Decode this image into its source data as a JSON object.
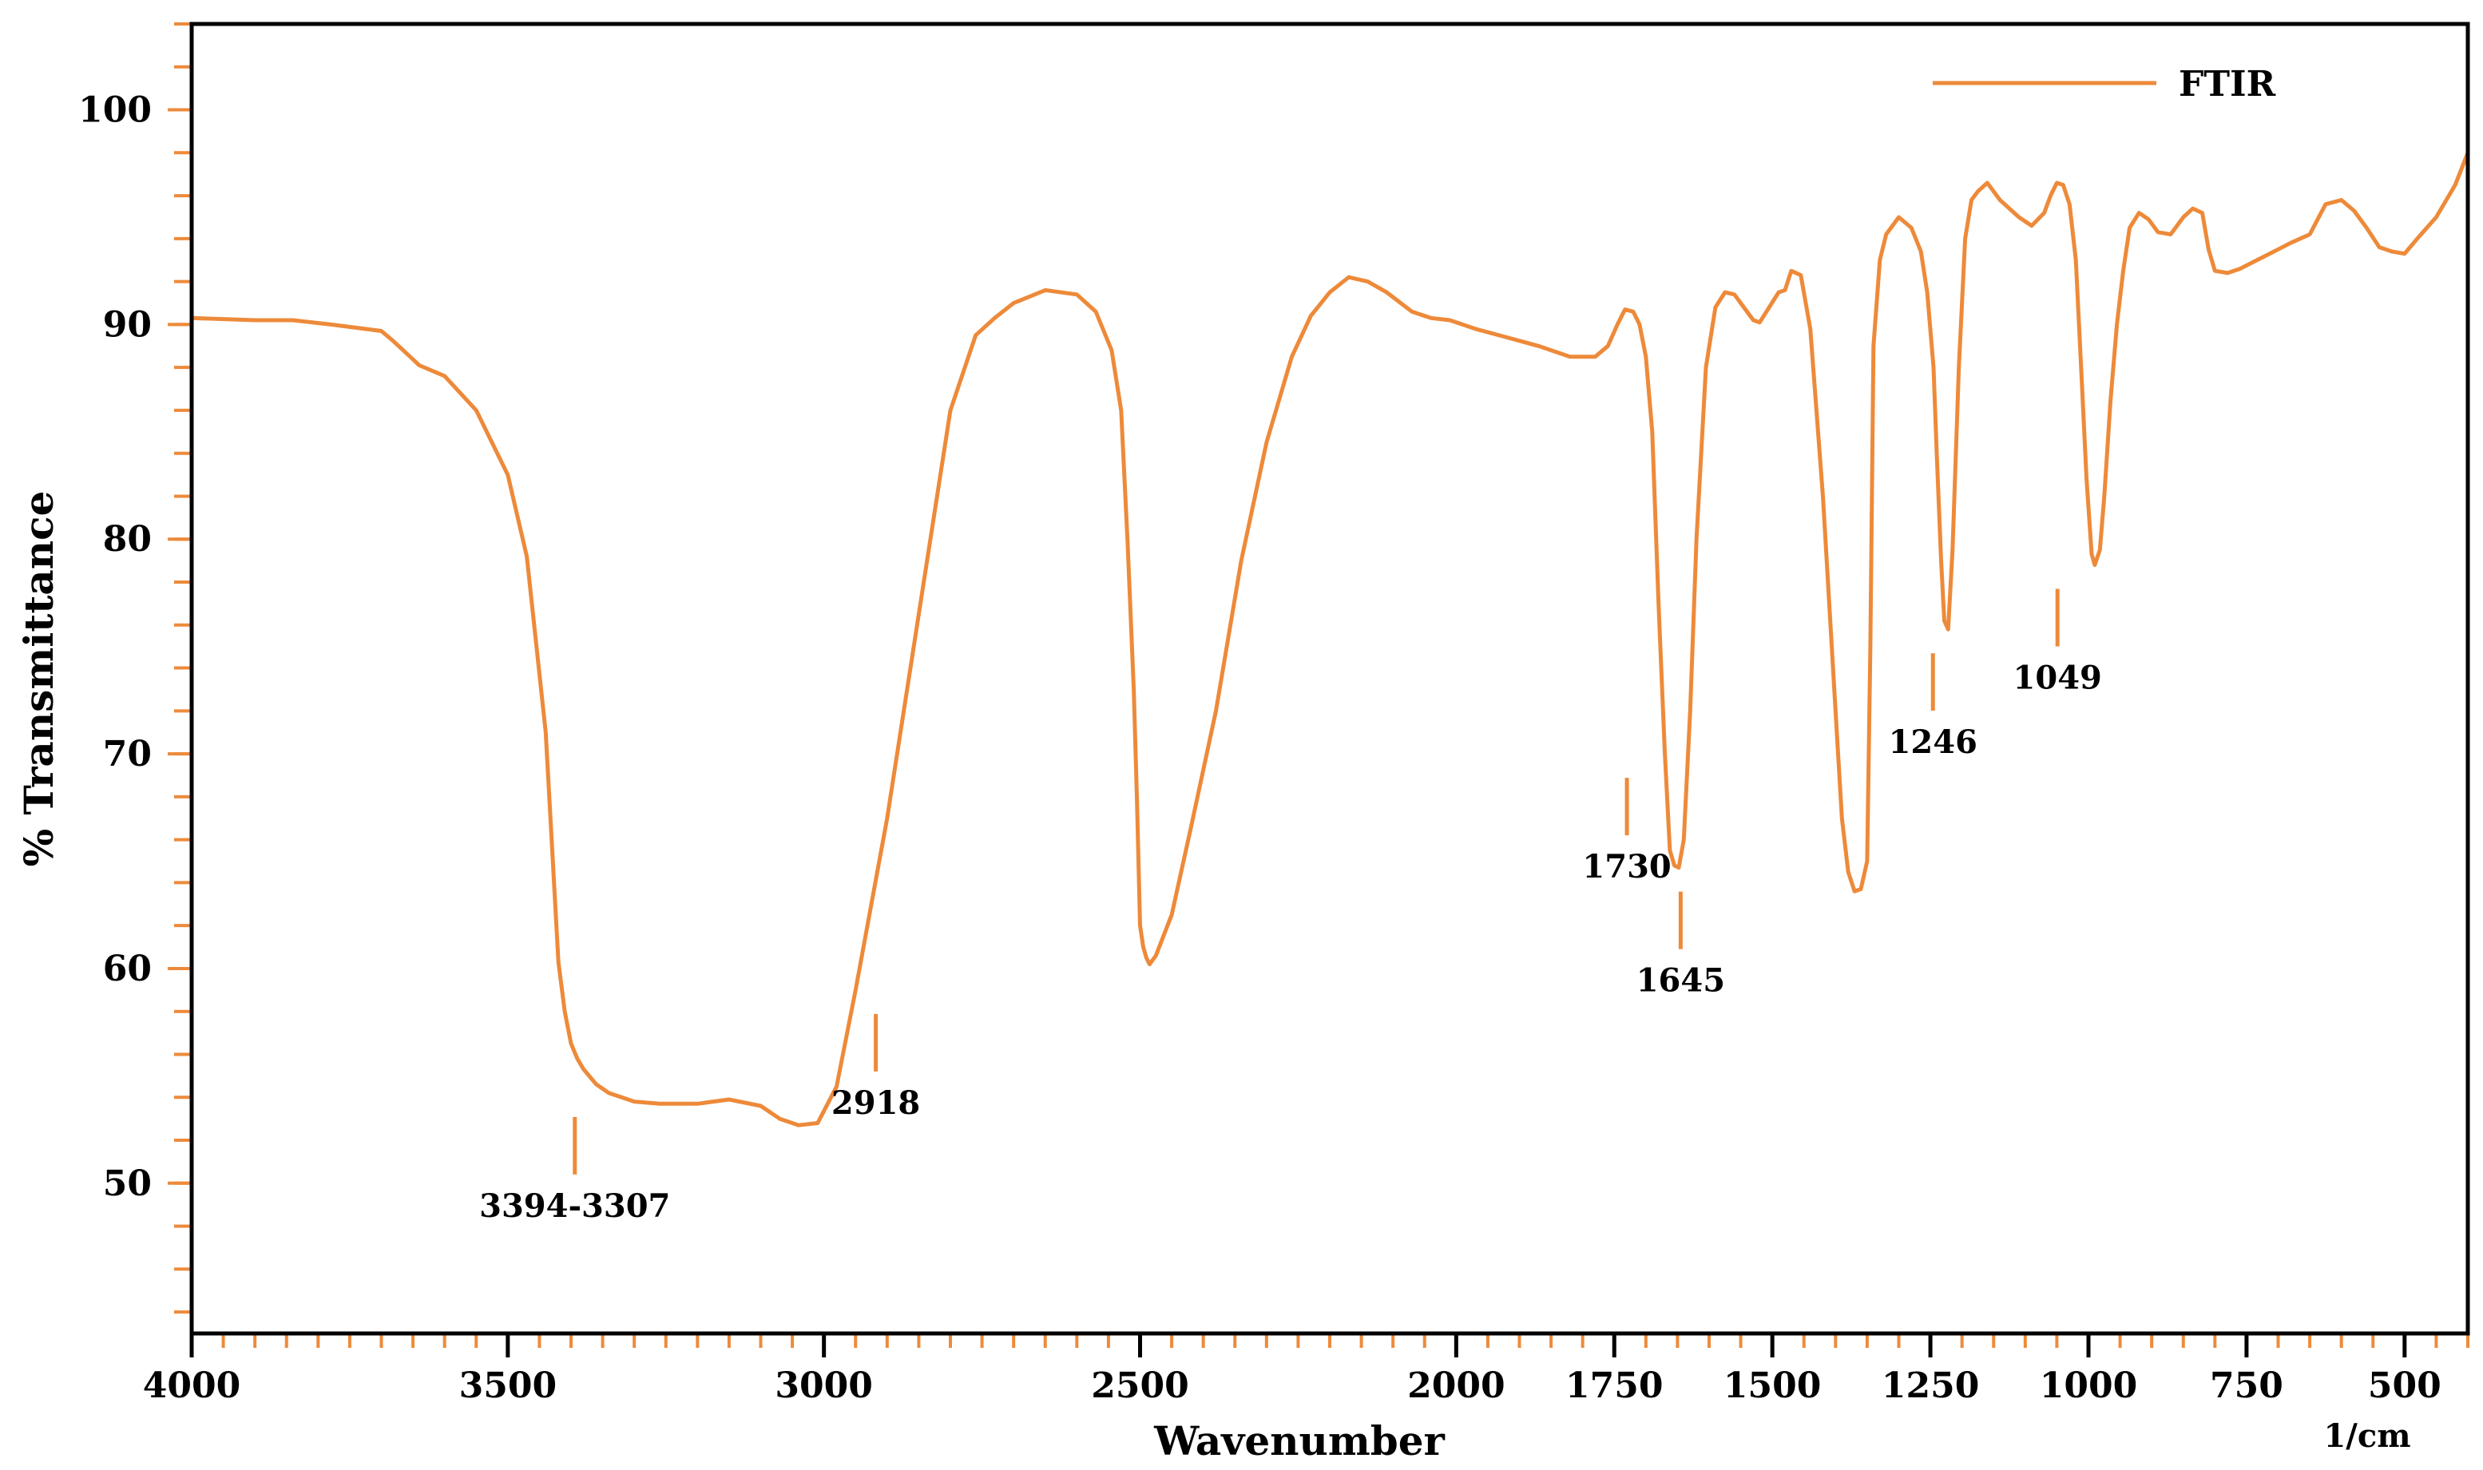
{
  "chart_data": {
    "type": "line",
    "xlabel": "Wavenumber",
    "xunit": "1/cm",
    "ylabel": "% Transmittance",
    "xlim": [
      4000,
      400
    ],
    "x_reversed": true,
    "ylim": [
      43,
      104
    ],
    "x_ticks": [
      4000,
      3500,
      3000,
      2500,
      2000,
      1750,
      1500,
      1250,
      1000,
      750,
      500
    ],
    "x_tick_labels": [
      "4000",
      "3500",
      "3000",
      "2500",
      "2000",
      "1750",
      "1500",
      "1250",
      "1000",
      "750",
      "500"
    ],
    "y_ticks": [
      50,
      60,
      70,
      80,
      90,
      100
    ],
    "y_tick_labels": [
      "50",
      "60",
      "70",
      "80",
      "90",
      "100"
    ],
    "legend": {
      "position": "top-right"
    },
    "grid": false,
    "color": "#ED8A3A",
    "series": [
      {
        "name": "FTIR",
        "x": [
          4000,
          3900,
          3840,
          3780,
          3700,
          3680,
          3640,
          3600,
          3550,
          3500,
          3470,
          3440,
          3420,
          3410,
          3400,
          3390,
          3380,
          3360,
          3340,
          3300,
          3260,
          3200,
          3150,
          3100,
          3070,
          3040,
          3010,
          2980,
          2950,
          2900,
          2850,
          2800,
          2760,
          2730,
          2700,
          2650,
          2600,
          2570,
          2545,
          2530,
          2520,
          2510,
          2505,
          2500,
          2495,
          2490,
          2485,
          2475,
          2450,
          2420,
          2380,
          2340,
          2300,
          2260,
          2230,
          2200,
          2170,
          2140,
          2110,
          2070,
          2040,
          2010,
          1970,
          1920,
          1870,
          1820,
          1780,
          1760,
          1745,
          1733,
          1720,
          1710,
          1700,
          1690,
          1680,
          1670,
          1662,
          1655,
          1648,
          1640,
          1630,
          1620,
          1605,
          1590,
          1575,
          1560,
          1545,
          1530,
          1520,
          1505,
          1490,
          1480,
          1470,
          1455,
          1440,
          1420,
          1400,
          1390,
          1380,
          1370,
          1360,
          1350,
          1345,
          1340,
          1330,
          1320,
          1300,
          1280,
          1265,
          1255,
          1245,
          1240,
          1233,
          1228,
          1222,
          1215,
          1205,
          1195,
          1185,
          1175,
          1160,
          1140,
          1110,
          1090,
          1070,
          1060,
          1050,
          1040,
          1030,
          1020,
          1010,
          1003,
          995,
          990,
          982,
          975,
          965,
          955,
          945,
          935,
          920,
          905,
          890,
          870,
          850,
          835,
          820,
          810,
          800,
          780,
          760,
          740,
          720,
          700,
          680,
          650,
          625,
          600,
          580,
          560,
          540,
          520,
          500,
          480,
          450,
          420,
          400
        ],
        "y": [
          90.3,
          90.2,
          90.2,
          90.0,
          89.7,
          89.2,
          88.1,
          87.6,
          86.0,
          83.0,
          79.2,
          71.0,
          60.3,
          58.0,
          56.5,
          55.8,
          55.3,
          54.6,
          54.2,
          53.8,
          53.7,
          53.7,
          53.9,
          53.6,
          53.0,
          52.7,
          52.8,
          54.5,
          59.0,
          67.0,
          76.5,
          86.0,
          89.5,
          90.3,
          91.0,
          91.6,
          91.4,
          90.6,
          88.8,
          86.0,
          80.0,
          73.0,
          68.0,
          62.0,
          61.0,
          60.5,
          60.2,
          60.6,
          62.5,
          66.5,
          72.0,
          79.0,
          84.5,
          88.5,
          90.4,
          91.5,
          92.2,
          92.0,
          91.5,
          90.6,
          90.3,
          90.2,
          89.8,
          89.4,
          89.0,
          88.5,
          88.5,
          89.0,
          90.0,
          90.7,
          90.6,
          90.0,
          88.5,
          85.0,
          77.0,
          70.0,
          65.5,
          64.8,
          64.7,
          66.0,
          72.0,
          80.0,
          88.0,
          90.8,
          91.5,
          91.4,
          90.8,
          90.2,
          90.1,
          90.8,
          91.5,
          91.6,
          92.5,
          92.3,
          89.8,
          82.0,
          72.0,
          67.0,
          64.5,
          63.6,
          63.7,
          65.0,
          75.0,
          89.0,
          93.0,
          94.2,
          95.0,
          94.5,
          93.4,
          91.5,
          88.0,
          84.0,
          79.0,
          76.2,
          75.8,
          79.5,
          88.0,
          94.0,
          95.8,
          96.2,
          96.6,
          95.8,
          95.0,
          94.6,
          95.2,
          96.0,
          96.6,
          96.5,
          95.6,
          93.0,
          87.0,
          82.8,
          79.3,
          78.8,
          79.5,
          82.0,
          86.5,
          90.0,
          92.5,
          94.5,
          95.2,
          94.9,
          94.3,
          94.2,
          95.0,
          95.4,
          95.2,
          93.5,
          92.5,
          92.4,
          92.6,
          92.9,
          93.2,
          93.5,
          93.8,
          94.2,
          95.6,
          95.8,
          95.3,
          94.5,
          93.6,
          93.4,
          93.3,
          94.0,
          95.0,
          96.5,
          98.0
        ]
      }
    ],
    "annotations": [
      {
        "label": "3394-3307",
        "x": 3394
      },
      {
        "label": "2918",
        "x": 2918
      },
      {
        "label": "1730",
        "x": 1730
      },
      {
        "label": "1645",
        "x": 1645
      },
      {
        "label": "1246",
        "x": 1246
      },
      {
        "label": "1049",
        "x": 1049
      }
    ]
  }
}
